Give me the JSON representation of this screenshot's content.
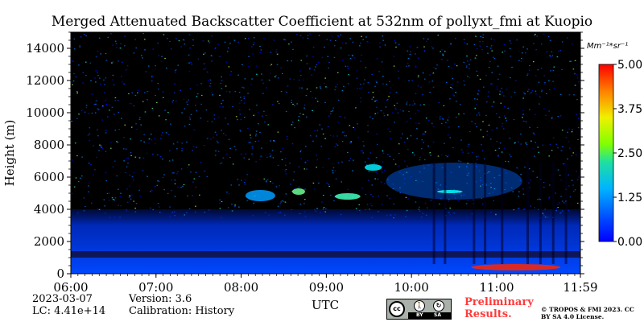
{
  "chart_data": {
    "type": "heatmap",
    "title": "Merged Attenuated Backscatter Coefficient at 532nm of pollyxt_fmi at Kuopio",
    "xlabel": "UTC",
    "ylabel": "Height (m)",
    "x_ticks": [
      "06:00",
      "07:00",
      "08:00",
      "09:00",
      "10:00",
      "11:00",
      "11:59"
    ],
    "x_range_hours": [
      6.0,
      11.9833
    ],
    "y_ticks": [
      0,
      2000,
      4000,
      6000,
      8000,
      10000,
      12000,
      14000
    ],
    "ylim": [
      0,
      15000
    ],
    "colorbar": {
      "unit": "Mm^{-1}*sr^{-1}",
      "unit_display": "Mm⁻¹*sr⁻¹",
      "ticks": [
        "0.00",
        "1.25",
        "2.50",
        "3.75",
        "5.00"
      ],
      "range": [
        0,
        5
      ],
      "colormap": "jet"
    },
    "features": [
      {
        "kind": "boundary_layer",
        "hours": [
          6.0,
          11.98
        ],
        "height_m": [
          0,
          4000
        ],
        "value": 0.8
      },
      {
        "kind": "low_level_band",
        "hours": [
          6.0,
          11.98
        ],
        "height_m": [
          1000,
          1400
        ],
        "value": 0.25
      },
      {
        "kind": "elevated_layer",
        "hours": [
          9.7,
          11.3
        ],
        "height_m": [
          4600,
          6900
        ],
        "value": 1.1
      },
      {
        "kind": "aerosol_streak",
        "hours": [
          8.05,
          8.4
        ],
        "height_m": [
          4500,
          5200
        ],
        "value": 1.4
      },
      {
        "kind": "aerosol_streak",
        "hours": [
          8.6,
          8.75
        ],
        "height_m": [
          4900,
          5300
        ],
        "value": 2.4
      },
      {
        "kind": "aerosol_streak",
        "hours": [
          9.1,
          9.4
        ],
        "height_m": [
          4600,
          5000
        ],
        "value": 2.2
      },
      {
        "kind": "aerosol_streak",
        "hours": [
          9.45,
          9.65
        ],
        "height_m": [
          6400,
          6800
        ],
        "value": 1.8
      },
      {
        "kind": "aerosol_streak",
        "hours": [
          10.3,
          10.6
        ],
        "height_m": [
          5000,
          5200
        ],
        "value": 1.9
      },
      {
        "kind": "surface_return",
        "hours": [
          10.7,
          11.75
        ],
        "height_m": [
          200,
          600
        ],
        "value": 4.2
      }
    ]
  },
  "footer": {
    "date": "2023-03-07",
    "lc": "LC: 4.41e+14",
    "version": "Version: 3.6",
    "calibration": "Calibration: History",
    "preliminary": "Preliminary Results.",
    "copyright": "© TROPOS & FMI 2023. CC BY SA 4.0 License.",
    "license_badge": {
      "cc": "cc",
      "by": "BY",
      "sa": "SA"
    }
  }
}
